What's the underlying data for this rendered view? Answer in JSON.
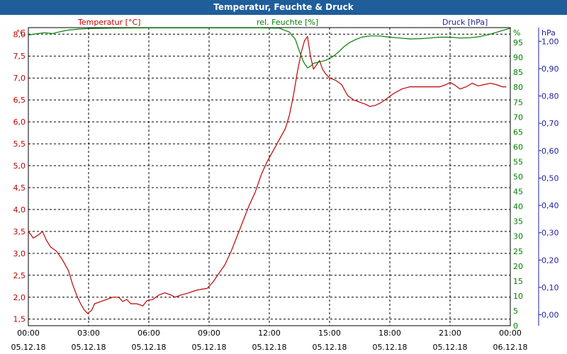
{
  "chart_data": {
    "type": "line",
    "title": "Temperatur, Feuchte & Druck",
    "left_axis": {
      "label": "Temperatur [°C]",
      "unit": "°C",
      "color": "#c00000",
      "range": [
        1.35,
        8.15
      ],
      "ticks": [
        "1,5",
        "2,0",
        "2,5",
        "3,0",
        "3,5",
        "4,0",
        "4,5",
        "5,0",
        "5,5",
        "6,0",
        "6,5",
        "7,0",
        "7,5",
        "8,0"
      ],
      "tick_values": [
        1.5,
        2.0,
        2.5,
        3.0,
        3.5,
        4.0,
        4.5,
        5.0,
        5.5,
        6.0,
        6.5,
        7.0,
        7.5,
        8.0
      ]
    },
    "right_axis_1": {
      "label": "rel. Feuchte [%]",
      "unit": "%",
      "color": "#008000",
      "range": [
        0,
        100
      ],
      "ticks": [
        "0",
        "5",
        "10",
        "15",
        "20",
        "25",
        "30",
        "35",
        "40",
        "45",
        "50",
        "55",
        "60",
        "65",
        "70",
        "75",
        "80",
        "85",
        "90",
        "95"
      ],
      "tick_values": [
        0,
        5,
        10,
        15,
        20,
        25,
        30,
        35,
        40,
        45,
        50,
        55,
        60,
        65,
        70,
        75,
        80,
        85,
        90,
        95
      ]
    },
    "right_axis_2": {
      "label": "Druck [hPa]",
      "unit": "hPa",
      "color": "#1f1f9f",
      "range": [
        -0.04,
        1.05
      ],
      "ticks": [
        "0,00",
        "0,10",
        "0,20",
        "0,30",
        "0,40",
        "0,50",
        "0,60",
        "0,70",
        "0,80",
        "0,90",
        "1,00"
      ],
      "tick_values": [
        0.0,
        0.1,
        0.2,
        0.3,
        0.4,
        0.5,
        0.6,
        0.7,
        0.8,
        0.9,
        1.0
      ]
    },
    "x_axis": {
      "range_hours": [
        0,
        24
      ],
      "ticks": [
        {
          "time": "00:00",
          "date": "05.12.18",
          "h": 0
        },
        {
          "time": "03:00",
          "date": "05.12.18",
          "h": 3
        },
        {
          "time": "06:00",
          "date": "05.12.18",
          "h": 6
        },
        {
          "time": "09:00",
          "date": "05.12.18",
          "h": 9
        },
        {
          "time": "12:00",
          "date": "05.12.18",
          "h": 12
        },
        {
          "time": "15:00",
          "date": "05.12.18",
          "h": 15
        },
        {
          "time": "18:00",
          "date": "05.12.18",
          "h": 18
        },
        {
          "time": "21:00",
          "date": "05.12.18",
          "h": 21
        },
        {
          "time": "00:00",
          "date": "06.12.18",
          "h": 24
        }
      ]
    },
    "grid": true,
    "series": [
      {
        "name": "Temperatur [°C]",
        "axis": "left",
        "color": "#c00000",
        "points": [
          [
            0,
            3.5
          ],
          [
            0.25,
            3.35
          ],
          [
            0.5,
            3.42
          ],
          [
            0.7,
            3.5
          ],
          [
            0.9,
            3.3
          ],
          [
            1.1,
            3.15
          ],
          [
            1.4,
            3.05
          ],
          [
            1.7,
            2.85
          ],
          [
            2.0,
            2.6
          ],
          [
            2.2,
            2.3
          ],
          [
            2.4,
            2.05
          ],
          [
            2.6,
            1.85
          ],
          [
            2.8,
            1.7
          ],
          [
            2.95,
            1.63
          ],
          [
            3.15,
            1.7
          ],
          [
            3.3,
            1.85
          ],
          [
            3.6,
            1.9
          ],
          [
            3.9,
            1.95
          ],
          [
            4.2,
            2.0
          ],
          [
            4.5,
            2.0
          ],
          [
            4.7,
            1.9
          ],
          [
            4.9,
            1.95
          ],
          [
            5.1,
            1.85
          ],
          [
            5.4,
            1.85
          ],
          [
            5.7,
            1.8
          ],
          [
            5.9,
            1.92
          ],
          [
            6.2,
            1.95
          ],
          [
            6.5,
            2.05
          ],
          [
            6.8,
            2.1
          ],
          [
            7.1,
            2.05
          ],
          [
            7.3,
            2.0
          ],
          [
            7.6,
            2.05
          ],
          [
            8.0,
            2.1
          ],
          [
            8.3,
            2.15
          ],
          [
            8.6,
            2.18
          ],
          [
            8.9,
            2.2
          ],
          [
            9.2,
            2.35
          ],
          [
            9.5,
            2.55
          ],
          [
            9.8,
            2.75
          ],
          [
            10.1,
            3.05
          ],
          [
            10.4,
            3.4
          ],
          [
            10.7,
            3.75
          ],
          [
            11.0,
            4.1
          ],
          [
            11.3,
            4.4
          ],
          [
            11.6,
            4.8
          ],
          [
            11.9,
            5.1
          ],
          [
            12.2,
            5.35
          ],
          [
            12.5,
            5.6
          ],
          [
            12.8,
            5.85
          ],
          [
            13.0,
            6.15
          ],
          [
            13.2,
            6.6
          ],
          [
            13.4,
            7.15
          ],
          [
            13.6,
            7.6
          ],
          [
            13.75,
            7.85
          ],
          [
            13.9,
            7.95
          ],
          [
            14.05,
            7.5
          ],
          [
            14.2,
            7.2
          ],
          [
            14.35,
            7.3
          ],
          [
            14.5,
            7.4
          ],
          [
            14.65,
            7.2
          ],
          [
            14.8,
            7.1
          ],
          [
            15.0,
            7.0
          ],
          [
            15.3,
            6.95
          ],
          [
            15.6,
            6.85
          ],
          [
            15.9,
            6.6
          ],
          [
            16.2,
            6.5
          ],
          [
            16.5,
            6.45
          ],
          [
            16.8,
            6.4
          ],
          [
            17.0,
            6.35
          ],
          [
            17.3,
            6.38
          ],
          [
            17.6,
            6.45
          ],
          [
            17.9,
            6.55
          ],
          [
            18.2,
            6.65
          ],
          [
            18.6,
            6.75
          ],
          [
            19.0,
            6.8
          ],
          [
            19.5,
            6.8
          ],
          [
            20.0,
            6.8
          ],
          [
            20.5,
            6.8
          ],
          [
            20.8,
            6.85
          ],
          [
            21.0,
            6.9
          ],
          [
            21.2,
            6.85
          ],
          [
            21.5,
            6.75
          ],
          [
            21.8,
            6.8
          ],
          [
            22.1,
            6.88
          ],
          [
            22.4,
            6.82
          ],
          [
            22.7,
            6.85
          ],
          [
            23.0,
            6.88
          ],
          [
            23.3,
            6.85
          ],
          [
            23.6,
            6.8
          ],
          [
            23.8,
            6.8
          ]
        ]
      },
      {
        "name": "rel. Feuchte [%]",
        "axis": "right1",
        "color": "#008000",
        "points": [
          [
            0,
            97.5
          ],
          [
            0.5,
            98
          ],
          [
            0.8,
            98.3
          ],
          [
            1.2,
            98
          ],
          [
            1.5,
            98.5
          ],
          [
            2.0,
            99.2
          ],
          [
            2.5,
            99.5
          ],
          [
            3.0,
            99.7
          ],
          [
            4.0,
            99.8
          ],
          [
            6.0,
            99.9
          ],
          [
            8.0,
            99.9
          ],
          [
            10.0,
            99.9
          ],
          [
            11.5,
            99.9
          ],
          [
            12.5,
            99.8
          ],
          [
            13.0,
            98.5
          ],
          [
            13.3,
            96
          ],
          [
            13.5,
            92
          ],
          [
            13.7,
            88.5
          ],
          [
            13.9,
            86.5
          ],
          [
            14.05,
            87
          ],
          [
            14.2,
            88
          ],
          [
            14.5,
            88.5
          ],
          [
            14.8,
            89
          ],
          [
            15.1,
            90
          ],
          [
            15.4,
            91.5
          ],
          [
            15.7,
            93.5
          ],
          [
            16.0,
            95
          ],
          [
            16.3,
            96
          ],
          [
            16.6,
            96.8
          ],
          [
            17.0,
            97.2
          ],
          [
            17.5,
            97.2
          ],
          [
            18.0,
            96.8
          ],
          [
            18.5,
            96.5
          ],
          [
            19.0,
            96.2
          ],
          [
            19.5,
            96.3
          ],
          [
            20.0,
            96.5
          ],
          [
            20.5,
            96.8
          ],
          [
            21.0,
            96.8
          ],
          [
            21.5,
            96.5
          ],
          [
            22.0,
            96.6
          ],
          [
            22.5,
            97
          ],
          [
            23.0,
            97.8
          ],
          [
            23.5,
            98.8
          ],
          [
            24.0,
            99.8
          ]
        ]
      }
    ]
  }
}
